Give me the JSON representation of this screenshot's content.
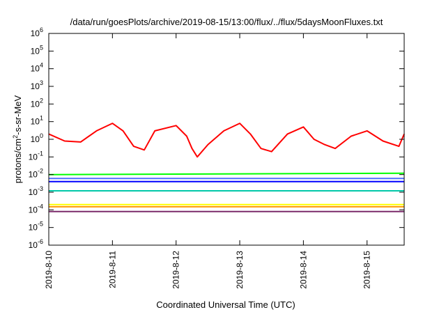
{
  "chart_data": {
    "type": "line",
    "title": "/data/run/goesPlots/archive/2019-08-15/13:00/flux/../flux/5daysMoonFluxes.txt",
    "xlabel": "Coordinated Universal Time (UTC)",
    "ylabel": "protons/cm²-s-sr-MeV",
    "yscale": "log",
    "ylim": [
      1e-06,
      1000000.0
    ],
    "xlim": [
      "2019-08-10",
      "2019-08-15 14:00"
    ],
    "y_ticks": [
      {
        "value": 1e-06,
        "base": "10",
        "exp": "-6"
      },
      {
        "value": 1e-05,
        "base": "10",
        "exp": "-5"
      },
      {
        "value": 0.0001,
        "base": "10",
        "exp": "-4"
      },
      {
        "value": 0.001,
        "base": "10",
        "exp": "-3"
      },
      {
        "value": 0.01,
        "base": "10",
        "exp": "-2"
      },
      {
        "value": 0.1,
        "base": "10",
        "exp": "-1"
      },
      {
        "value": 1,
        "base": "10",
        "exp": "0"
      },
      {
        "value": 10,
        "base": "10",
        "exp": "1"
      },
      {
        "value": 100,
        "base": "10",
        "exp": "2"
      },
      {
        "value": 1000,
        "base": "10",
        "exp": "3"
      },
      {
        "value": 10000,
        "base": "10",
        "exp": "4"
      },
      {
        "value": 100000,
        "base": "10",
        "exp": "5"
      },
      {
        "value": 1000000,
        "base": "10",
        "exp": "6"
      }
    ],
    "x_ticks": [
      "2019-8-10",
      "2019-8-11",
      "2019-8-12",
      "2019-8-13",
      "2019-8-14",
      "2019-8-15"
    ],
    "grid": false,
    "legend": "none",
    "series": [
      {
        "color": "#ff0000",
        "x": [
          "2019-08-10 00:00",
          "2019-08-10 06:00",
          "2019-08-10 12:00",
          "2019-08-10 18:00",
          "2019-08-11 00:00",
          "2019-08-11 04:00",
          "2019-08-11 08:00",
          "2019-08-11 12:00",
          "2019-08-11 16:00",
          "2019-08-12 00:00",
          "2019-08-12 04:00",
          "2019-08-12 06:00",
          "2019-08-12 08:00",
          "2019-08-12 12:00",
          "2019-08-12 18:00",
          "2019-08-13 00:00",
          "2019-08-13 04:00",
          "2019-08-13 08:00",
          "2019-08-13 12:00",
          "2019-08-13 18:00",
          "2019-08-14 00:00",
          "2019-08-14 04:00",
          "2019-08-14 08:00",
          "2019-08-14 12:00",
          "2019-08-14 18:00",
          "2019-08-15 00:00",
          "2019-08-15 06:00",
          "2019-08-15 12:00",
          "2019-08-15 14:00"
        ],
        "values": [
          2,
          0.8,
          0.7,
          3,
          8,
          3,
          0.4,
          0.25,
          3,
          6,
          1.5,
          0.3,
          0.1,
          0.5,
          3,
          8,
          2,
          0.3,
          0.2,
          2,
          5,
          1,
          0.5,
          0.3,
          1.5,
          3,
          0.8,
          0.4,
          2
        ]
      },
      {
        "color": "#00ff00",
        "x": [
          "2019-08-10 00:00",
          "2019-08-15 14:00"
        ],
        "values": [
          0.01,
          0.012
        ]
      },
      {
        "color": "#0000ff",
        "x": [
          "2019-08-10 00:00",
          "2019-08-15 14:00"
        ],
        "values": [
          0.004,
          0.004
        ]
      },
      {
        "color": "#4f6fff",
        "x": [
          "2019-08-10 00:00",
          "2019-08-15 14:00"
        ],
        "values": [
          0.006,
          0.006
        ]
      },
      {
        "color": "#00c8a8",
        "x": [
          "2019-08-10 00:00",
          "2019-08-15 14:00"
        ],
        "values": [
          0.0012,
          0.0012
        ]
      },
      {
        "color": "#ffff00",
        "x": [
          "2019-08-10 00:00",
          "2019-08-15 14:00"
        ],
        "values": [
          0.0002,
          0.0002
        ]
      },
      {
        "color": "#ff9900",
        "x": [
          "2019-08-10 00:00",
          "2019-08-15 14:00"
        ],
        "values": [
          0.00015,
          0.00015
        ]
      },
      {
        "color": "#7b2a6a",
        "x": [
          "2019-08-10 00:00",
          "2019-08-15 14:00"
        ],
        "values": [
          8e-05,
          8e-05
        ]
      }
    ]
  }
}
